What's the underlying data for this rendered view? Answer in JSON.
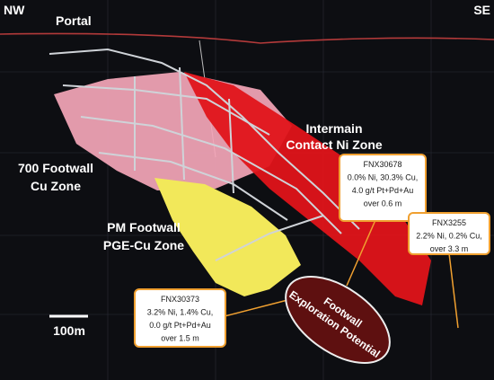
{
  "directions": {
    "left": "NW",
    "right": "SE"
  },
  "zones": {
    "portal": "Portal",
    "intermain": [
      "Intermain",
      "Contact Ni Zone"
    ],
    "footwall_700": [
      "700 Footwall",
      "Cu Zone"
    ],
    "pm_footwall": [
      "PM Footwall",
      "PGE-Cu Zone"
    ]
  },
  "callouts": [
    {
      "lines": [
        "FNX30678",
        "0.0% Ni, 30.3% Cu,",
        "4.0 g/t Pt+Pd+Au",
        "over 0.6 m"
      ]
    },
    {
      "lines": [
        "FNX3255",
        "2.2% Ni, 0.2% Cu,",
        "over 3.3 m"
      ]
    },
    {
      "lines": [
        "FNX30373",
        "3.2% Ni, 1.4% Cu,",
        "0.0 g/t Pt+Pd+Au",
        "over 1.5 m"
      ]
    }
  ],
  "target": [
    "Footwall",
    "Exploration Potential"
  ],
  "scale_bar": "100m"
}
